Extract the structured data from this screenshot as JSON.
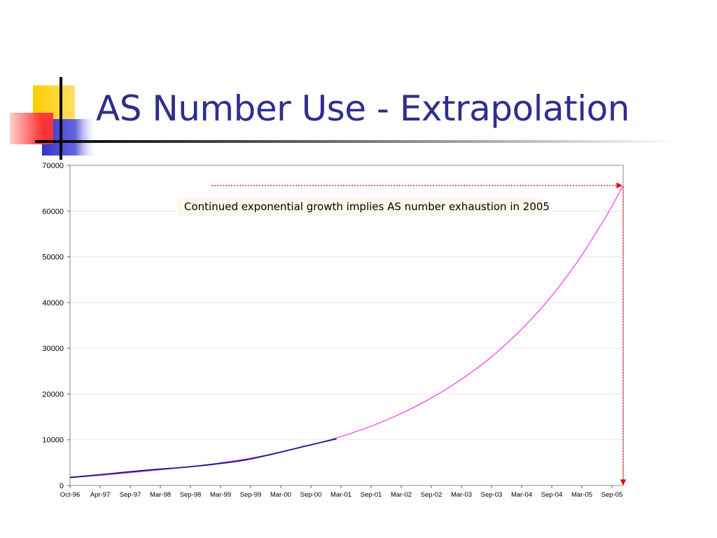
{
  "slide": {
    "title": "AS Number Use - Extrapolation"
  },
  "colors": {
    "title": "#2e2e8f",
    "observed_series": "#1a1a80",
    "extrapolation_series": "#ff33ff",
    "annotation_arrows": "#dd0000",
    "logo_yellow": "#ffcc00",
    "logo_blue": "#3333cc",
    "logo_red": "#ff3333"
  },
  "chart_data": {
    "type": "line",
    "ylim": [
      0,
      70000
    ],
    "y_ticks": [
      "0",
      "10000",
      "20000",
      "30000",
      "40000",
      "50000",
      "60000",
      "70000"
    ],
    "x_ticks": [
      "Oct-96",
      "Apr-97",
      "Sep-97",
      "Mar-98",
      "Sep-98",
      "Mar-99",
      "Sep-99",
      "Mar-00",
      "Sep-00",
      "Mar-01",
      "Sep-01",
      "Mar-02",
      "Sep-02",
      "Mar-03",
      "Sep-03",
      "Mar-04",
      "Sep-04",
      "Mar-05",
      "Sep-05"
    ],
    "x_range": [
      "1996-10",
      "2005-12"
    ],
    "grid": "horizontal",
    "legend": "none",
    "series": [
      {
        "style": "observed",
        "x": [
          "1996-10",
          "1997-04",
          "1997-09",
          "1998-03",
          "1998-09",
          "1999-03",
          "1999-09",
          "2000-03",
          "2000-09",
          "2001-03"
        ],
        "y": [
          1750,
          2350,
          2900,
          3500,
          4000,
          4700,
          5600,
          7050,
          8650,
          10200
        ]
      },
      {
        "style": "extrapolation",
        "x": [
          "1996-10",
          "1997-04",
          "1997-09",
          "1998-03",
          "1998-09",
          "1999-03",
          "1999-09",
          "2000-03",
          "2000-09",
          "2001-03",
          "2001-09",
          "2002-03",
          "2002-09",
          "2003-03",
          "2003-09",
          "2004-03",
          "2004-09",
          "2005-03",
          "2005-09",
          "2005-12"
        ],
        "y": [
          1700,
          2200,
          2700,
          3300,
          4000,
          4800,
          5800,
          7100,
          8600,
          10400,
          12600,
          15300,
          18600,
          22600,
          27400,
          33300,
          40400,
          49100,
          59600,
          65600
        ]
      }
    ],
    "annotation": {
      "text": "Continued exponential growth implies AS number exhaustion in 2005",
      "arrow_y_value": 65600,
      "arrow_x_value": "2005-12"
    }
  }
}
